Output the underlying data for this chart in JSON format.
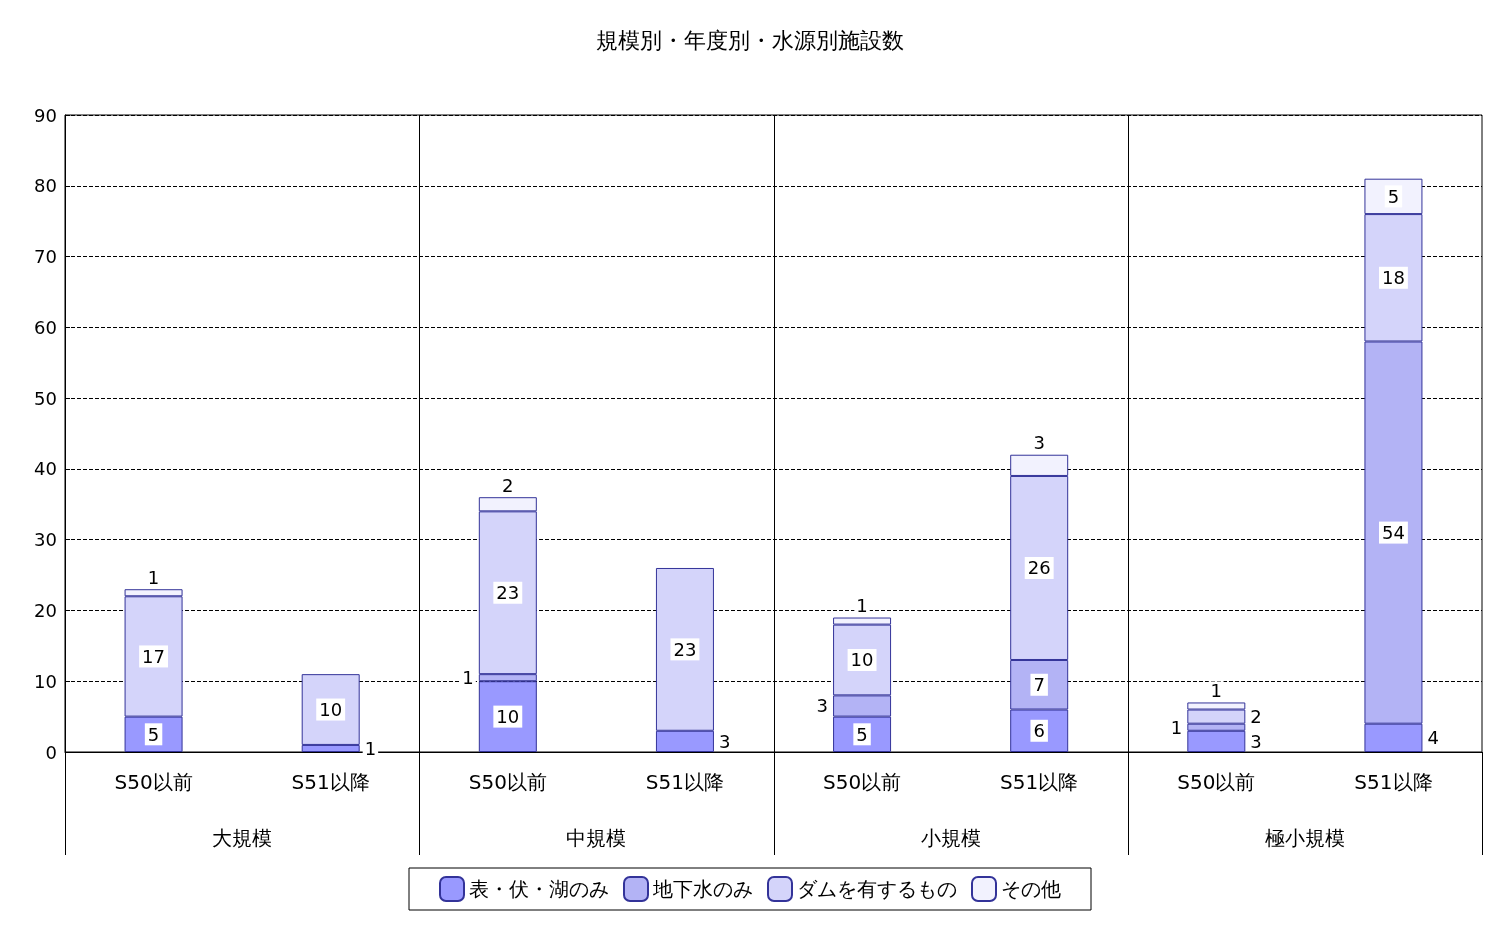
{
  "chart_data": {
    "type": "bar",
    "title": "規模別・年度別・水源別施設数",
    "categories": [
      "S50以前",
      "S51以降",
      "S50以前",
      "S51以降",
      "S50以前",
      "S51以降",
      "S50以前",
      "S51以降"
    ],
    "annotations": [
      "大規模",
      "中規模",
      "小規模",
      "極小規模"
    ],
    "series": [
      {
        "name": "表・伏・湖のみ",
        "color": "#9999ff",
        "values": [
          5,
          1,
          10,
          3,
          5,
          6,
          3,
          4
        ]
      },
      {
        "name": "地下水のみ",
        "color": "#b3b3f5",
        "values": [
          null,
          null,
          1,
          null,
          3,
          7,
          1,
          54
        ]
      },
      {
        "name": "ダムを有するもの",
        "color": "#d4d4fa",
        "values": [
          17,
          10,
          23,
          23,
          10,
          26,
          2,
          18
        ]
      },
      {
        "name": "その他",
        "color": "#f2f2fe",
        "values": [
          1,
          null,
          2,
          null,
          1,
          3,
          1,
          5
        ]
      }
    ],
    "stacked": true,
    "data_labels": true,
    "ylim": [
      0,
      90
    ],
    "yticks": [
      0,
      10,
      20,
      30,
      40,
      50,
      60,
      70,
      80,
      90
    ],
    "grid": "y",
    "legend": "bottom"
  }
}
